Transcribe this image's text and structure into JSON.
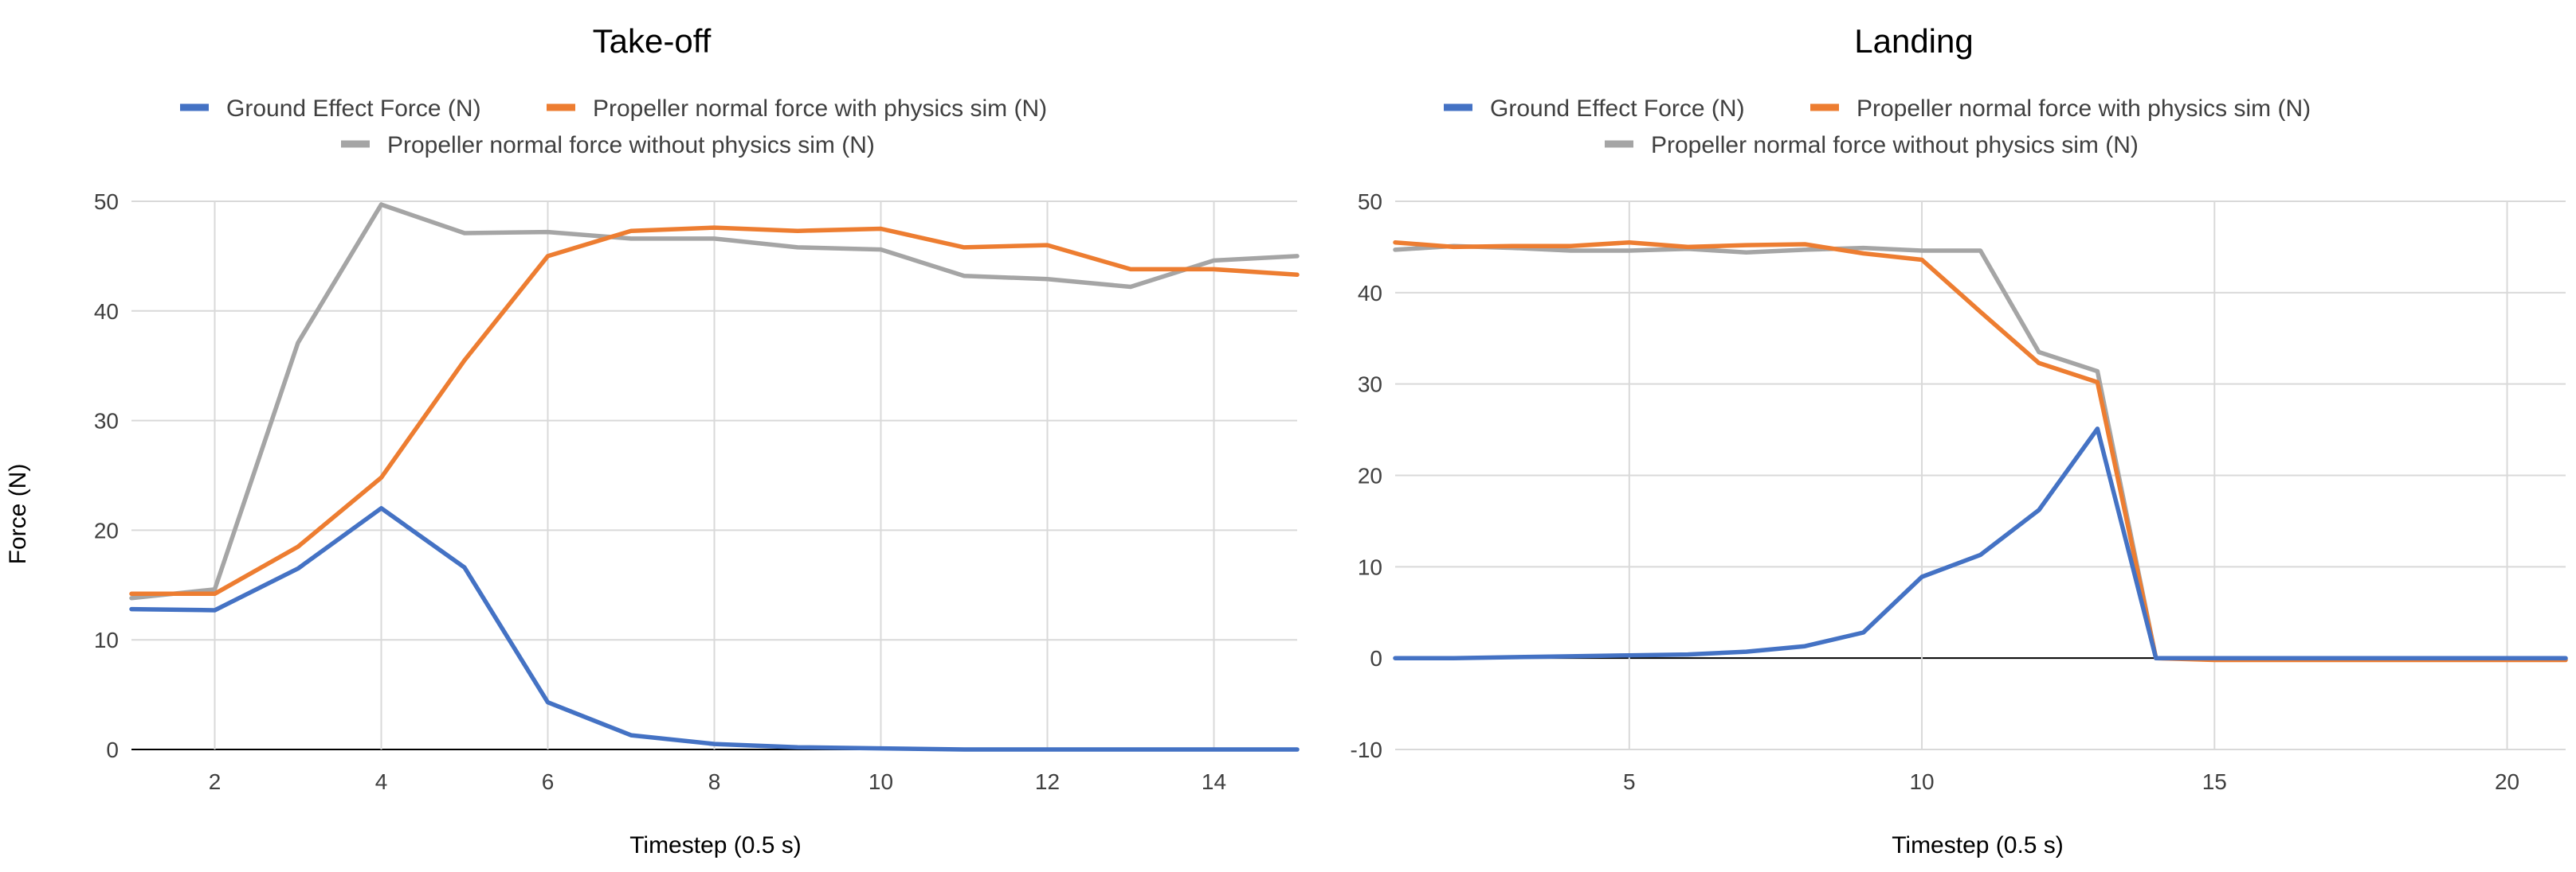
{
  "colors": {
    "ground_effect": "#4472C4",
    "with_physics": "#ED7D31",
    "without_physics": "#A5A5A5",
    "grid": "#D9D9D9",
    "zero_line": "#000000",
    "text": "#000000",
    "axis_text": "#404040"
  },
  "chart_data": [
    {
      "type": "line",
      "title": "Take-off",
      "xlabel": "Timestep (0.5 s)",
      "ylabel": "Force (N)",
      "xlim": [
        1,
        15
      ],
      "ylim": [
        0,
        50
      ],
      "xticks": [
        2,
        4,
        6,
        8,
        10,
        12,
        14
      ],
      "yticks": [
        0,
        10,
        20,
        30,
        40,
        50
      ],
      "grid": true,
      "legend_position": "top-center",
      "x": [
        1,
        2,
        3,
        4,
        5,
        6,
        7,
        8,
        9,
        10,
        11,
        12,
        13,
        14,
        15
      ],
      "series": [
        {
          "name": "Ground Effect Force (N)",
          "color_key": "ground_effect",
          "values": [
            12.8,
            12.7,
            16.5,
            22.0,
            16.6,
            4.3,
            1.3,
            0.5,
            0.2,
            0.1,
            0.0,
            0.0,
            0.0,
            0.0,
            0.0
          ]
        },
        {
          "name": "Propeller normal force with physics sim (N)",
          "color_key": "with_physics",
          "values": [
            14.2,
            14.2,
            18.5,
            24.8,
            35.5,
            45.0,
            47.3,
            47.6,
            47.3,
            47.5,
            45.8,
            46.0,
            43.8,
            43.8,
            43.3
          ]
        },
        {
          "name": "Propeller normal force without physics sim (N)",
          "color_key": "without_physics",
          "values": [
            13.8,
            14.6,
            37.1,
            49.7,
            47.1,
            47.2,
            46.6,
            46.6,
            45.8,
            45.6,
            43.2,
            42.9,
            42.2,
            44.6,
            45.0
          ]
        }
      ]
    },
    {
      "type": "line",
      "title": "Landing",
      "xlabel": "Timestep (0.5 s)",
      "ylabel": "",
      "xlim": [
        1,
        21
      ],
      "ylim": [
        -10,
        50
      ],
      "xticks": [
        5,
        10,
        15,
        20
      ],
      "yticks": [
        -10,
        0,
        10,
        20,
        30,
        40,
        50
      ],
      "grid": true,
      "legend_position": "top-center",
      "x": [
        1,
        2,
        3,
        4,
        5,
        6,
        7,
        8,
        9,
        10,
        11,
        12,
        13,
        14,
        15,
        16,
        17,
        18,
        19,
        20,
        21
      ],
      "series": [
        {
          "name": "Ground Effect Force (N)",
          "color_key": "ground_effect",
          "values": [
            0.0,
            0.0,
            0.1,
            0.2,
            0.3,
            0.4,
            0.7,
            1.3,
            2.8,
            8.9,
            11.3,
            16.2,
            25.1,
            0.0,
            0.0,
            0.0,
            0.0,
            0.0,
            0.0,
            0.0,
            0.0
          ]
        },
        {
          "name": "Propeller normal force with physics sim (N)",
          "color_key": "with_physics",
          "values": [
            45.5,
            45.0,
            45.1,
            45.1,
            45.5,
            45.0,
            45.2,
            45.3,
            44.3,
            43.6,
            37.9,
            32.3,
            30.2,
            0.0,
            -0.2,
            -0.2,
            -0.2,
            -0.2,
            -0.2,
            -0.2,
            -0.2
          ]
        },
        {
          "name": "Propeller normal force without physics sim (N)",
          "color_key": "without_physics",
          "values": [
            44.7,
            45.1,
            44.9,
            44.6,
            44.6,
            44.8,
            44.4,
            44.7,
            44.9,
            44.6,
            44.6,
            33.5,
            31.4,
            0.0,
            -0.1,
            -0.1,
            -0.1,
            -0.1,
            -0.1,
            -0.1,
            -0.1
          ]
        }
      ]
    }
  ]
}
